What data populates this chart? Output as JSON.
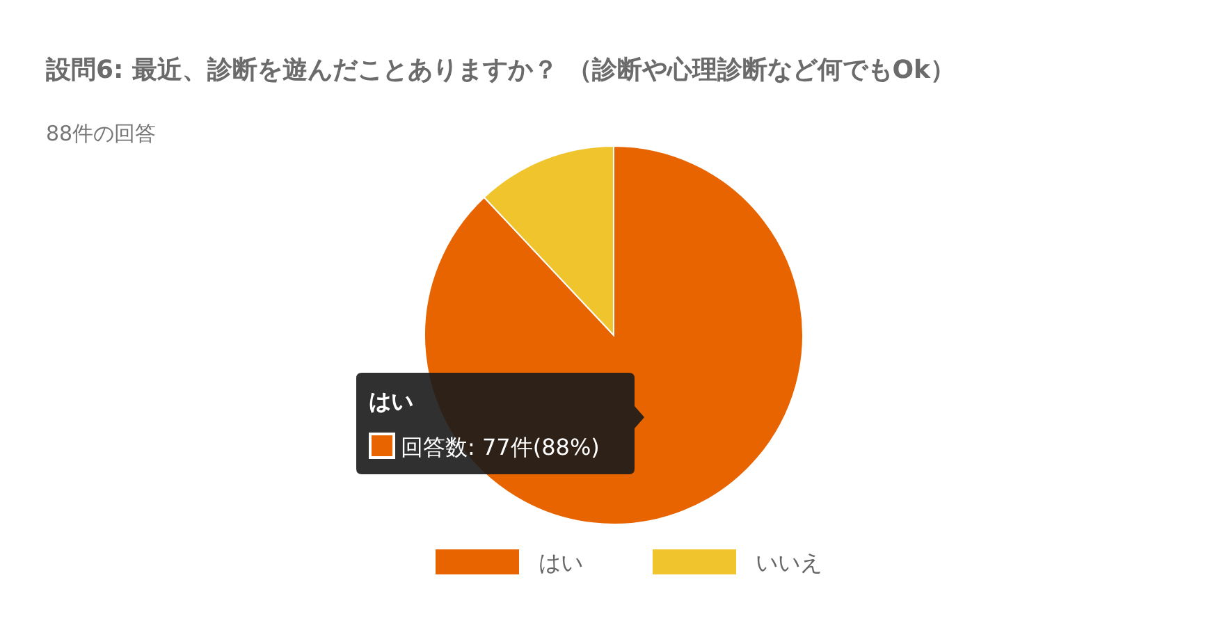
{
  "chart_data": {
    "type": "pie",
    "title": "設問6: 最近、診断を遊んだことありますか？ （診断や心理診断など何でもOk）",
    "subtitle": "88件の回答",
    "categories": [
      "はい",
      "いいえ"
    ],
    "values": [
      88,
      12
    ],
    "colors": [
      "#e86400",
      "#f0c42c"
    ],
    "legend": "bottom",
    "annotations": [
      "はい",
      "回答数: 77件(88%)"
    ]
  }
}
